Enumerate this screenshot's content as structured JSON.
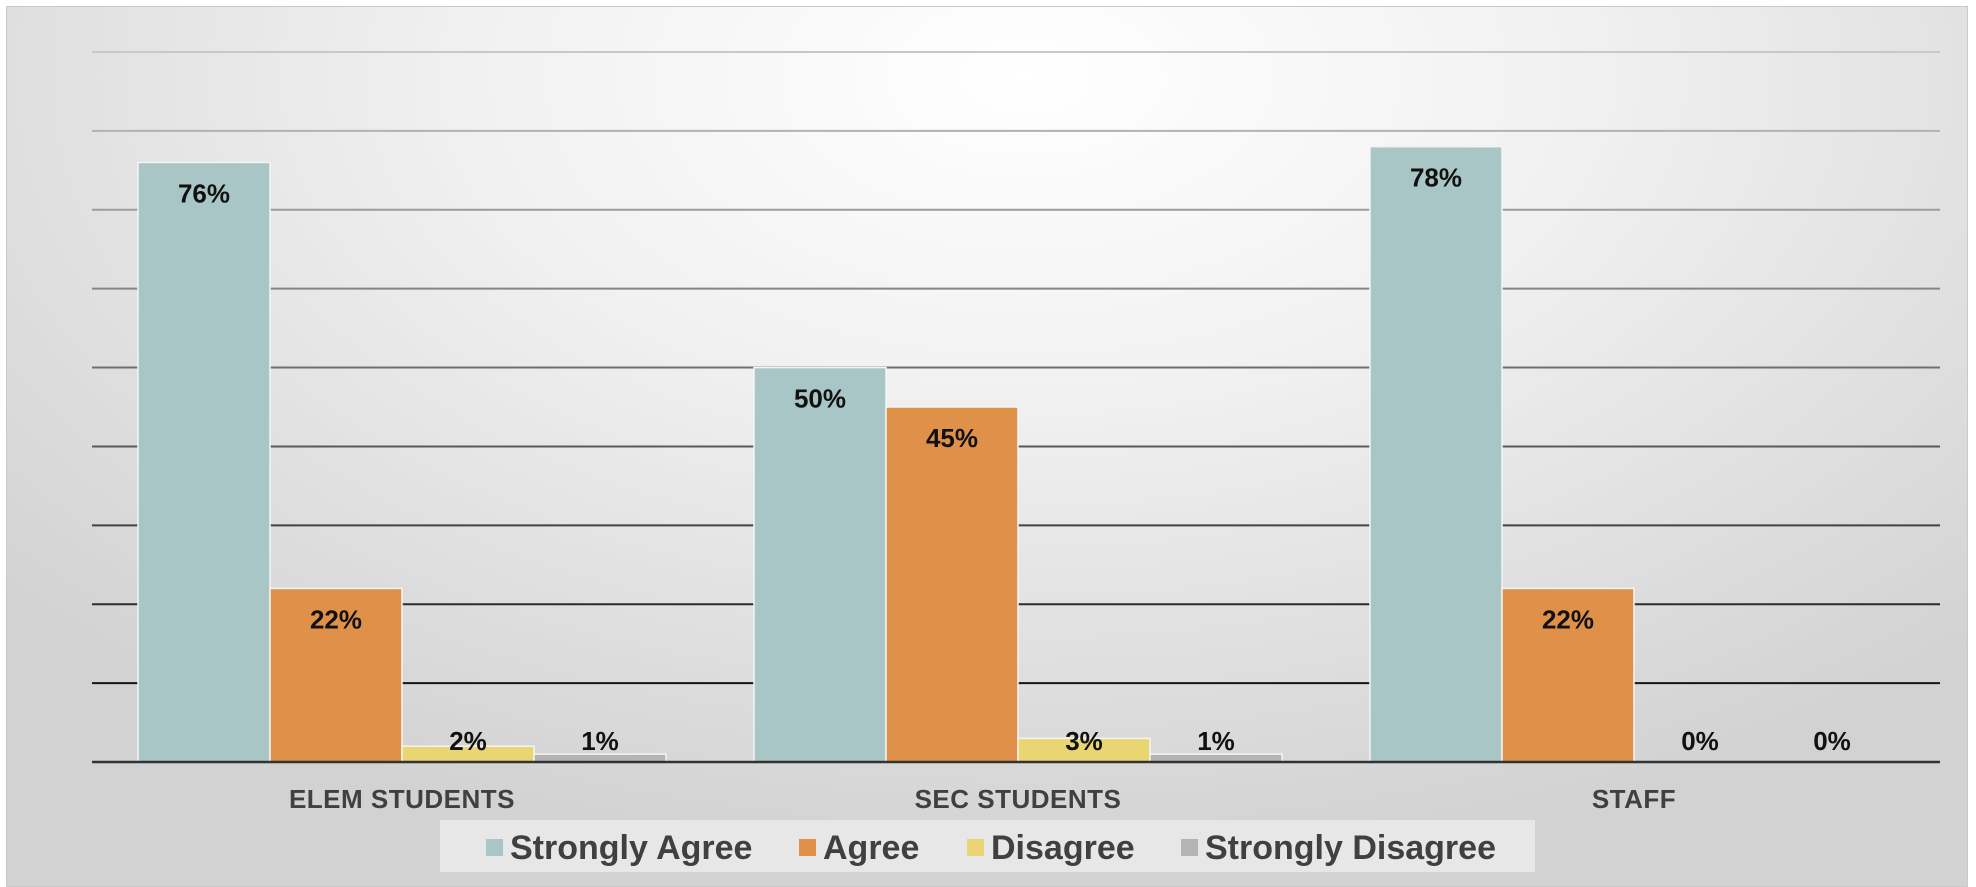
{
  "chart_data": {
    "type": "bar",
    "categories": [
      "ELEM STUDENTS",
      "SEC STUDENTS",
      "STAFF"
    ],
    "series": [
      {
        "name": "Strongly Agree",
        "color": "#a8c6c6",
        "values": [
          76,
          50,
          78
        ],
        "labels": [
          "76%",
          "50%",
          "78%"
        ]
      },
      {
        "name": "Agree",
        "color": "#df9149",
        "values": [
          22,
          45,
          22
        ],
        "labels": [
          "22%",
          "45%",
          "22%"
        ]
      },
      {
        "name": "Disagree",
        "color": "#e9d571",
        "values": [
          2,
          3,
          0
        ],
        "labels": [
          "2%",
          "3%",
          "0%"
        ]
      },
      {
        "name": "Strongly Disagree",
        "color": "#b4b4b4",
        "values": [
          1,
          1,
          0
        ],
        "labels": [
          "1%",
          "1%",
          "0%"
        ]
      }
    ],
    "ylim": [
      0,
      90
    ],
    "grid": true,
    "legend": "bottom",
    "title": "",
    "xlabel": "",
    "ylabel": ""
  }
}
